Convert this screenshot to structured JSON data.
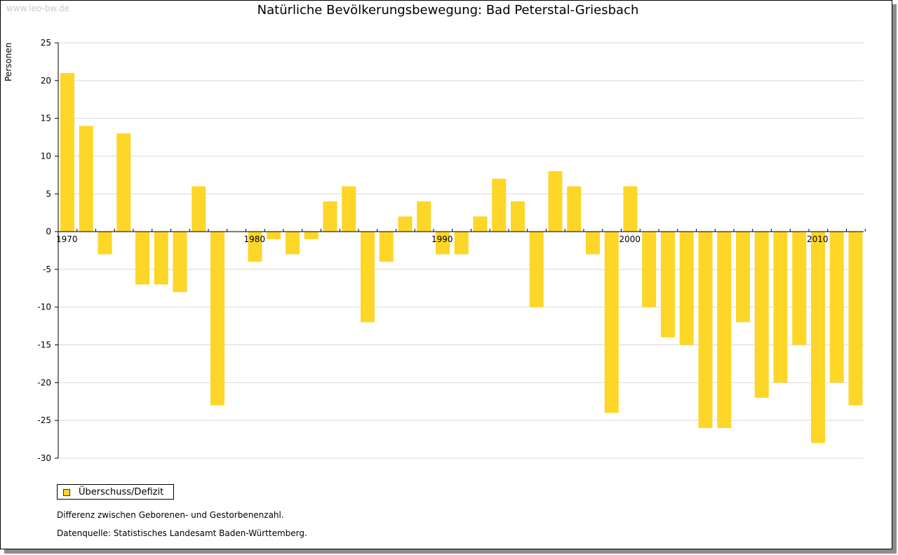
{
  "watermark": "www.leo-bw.de",
  "colors": {
    "bar": "#fdd627",
    "grid": "#d9d9d9",
    "axis": "#000000"
  },
  "notes": {
    "definition": "Differenz zwischen Geborenen- und Gestorbenenzahl.",
    "source": "Datenquelle: Statistisches Landesamt Baden-Württemberg."
  },
  "chart_data": {
    "type": "bar",
    "title": "Natürliche Bevölkerungsbewegung: Bad Peterstal-Griesbach",
    "ylabel": "Personen",
    "xlabel": "",
    "ylim": [
      -30,
      25
    ],
    "yticks": [
      25,
      20,
      15,
      10,
      5,
      0,
      -5,
      -10,
      -15,
      -20,
      -25,
      -30
    ],
    "xtick_labels": [
      "1970",
      "1980",
      "1990",
      "2000",
      "2010"
    ],
    "grid": true,
    "legend_position": "bottom-left",
    "series": [
      {
        "name": "Überschuss/Defizit",
        "x": [
          1970,
          1971,
          1972,
          1973,
          1974,
          1975,
          1976,
          1977,
          1978,
          1979,
          1980,
          1981,
          1982,
          1983,
          1984,
          1985,
          1986,
          1987,
          1988,
          1989,
          1990,
          1991,
          1992,
          1993,
          1994,
          1995,
          1996,
          1997,
          1998,
          1999,
          2000,
          2001,
          2002,
          2003,
          2004,
          2005,
          2006,
          2007,
          2008,
          2009,
          2010,
          2011,
          2012
        ],
        "values": [
          21,
          14,
          -3,
          13,
          -7,
          -7,
          -8,
          6,
          -23,
          0,
          -4,
          -1,
          -3,
          -1,
          4,
          6,
          -12,
          -4,
          2,
          4,
          -3,
          -3,
          2,
          7,
          4,
          -10,
          8,
          6,
          -3,
          -24,
          6,
          -10,
          -14,
          -15,
          -26,
          -26,
          -12,
          -22,
          -20,
          -15,
          -28,
          -20,
          -23
        ]
      }
    ]
  }
}
